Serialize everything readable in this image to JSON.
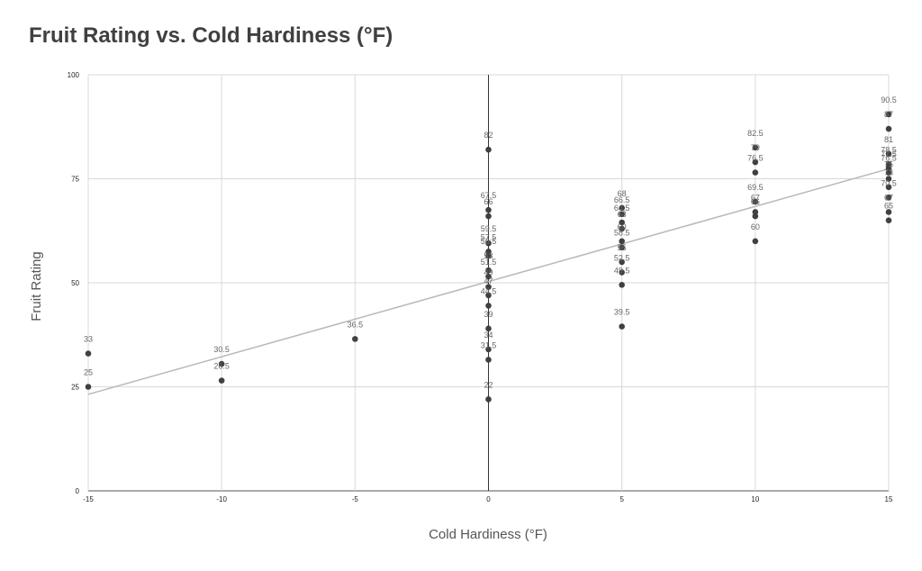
{
  "chart_data": {
    "type": "scatter",
    "title": "Fruit Rating vs. Cold Hardiness (°F)",
    "xlabel": "Cold Hardiness (°F)",
    "ylabel": "Fruit Rating",
    "xlim": [
      -15,
      15
    ],
    "ylim": [
      0,
      100
    ],
    "xticks": [
      -15,
      -10,
      -5,
      0,
      5,
      10,
      15
    ],
    "yticks": [
      0,
      25,
      50,
      75,
      100
    ],
    "grid": true,
    "legend": "none",
    "colors": {
      "points": "#404040",
      "trendline": "#b8b8b8",
      "grid": "#d9d9d9",
      "zero_line": "#333333"
    },
    "trendline": {
      "type": "linear",
      "from": [
        -15,
        23.2
      ],
      "to": [
        15,
        77.4
      ]
    },
    "points": [
      {
        "x": -15,
        "y": 33
      },
      {
        "x": -15,
        "y": 25
      },
      {
        "x": -10,
        "y": 30.5
      },
      {
        "x": -10,
        "y": 26.5
      },
      {
        "x": -5,
        "y": 36.5
      },
      {
        "x": 0,
        "y": 82
      },
      {
        "x": 0,
        "y": 67.5
      },
      {
        "x": 0,
        "y": 66
      },
      {
        "x": 0,
        "y": 59.5
      },
      {
        "x": 0,
        "y": 57.5
      },
      {
        "x": 0,
        "y": 56.5
      },
      {
        "x": 0,
        "y": 53
      },
      {
        "x": 0,
        "y": 51.5
      },
      {
        "x": 0,
        "y": 49
      },
      {
        "x": 0,
        "y": 47
      },
      {
        "x": 0,
        "y": 44.5
      },
      {
        "x": 0,
        "y": 39
      },
      {
        "x": 0,
        "y": 34
      },
      {
        "x": 0,
        "y": 31.5
      },
      {
        "x": 0,
        "y": 22
      },
      {
        "x": 5,
        "y": 68
      },
      {
        "x": 5,
        "y": 66.5
      },
      {
        "x": 5,
        "y": 64.5
      },
      {
        "x": 5,
        "y": 63
      },
      {
        "x": 5,
        "y": 60
      },
      {
        "x": 5,
        "y": 58.5
      },
      {
        "x": 5,
        "y": 55
      },
      {
        "x": 5,
        "y": 52.5
      },
      {
        "x": 5,
        "y": 49.5
      },
      {
        "x": 5,
        "y": 39.5
      },
      {
        "x": 10,
        "y": 82.5
      },
      {
        "x": 10,
        "y": 79
      },
      {
        "x": 10,
        "y": 76.5
      },
      {
        "x": 10,
        "y": 69.5
      },
      {
        "x": 10,
        "y": 67
      },
      {
        "x": 10,
        "y": 66
      },
      {
        "x": 10,
        "y": 60
      },
      {
        "x": 15,
        "y": 90.5
      },
      {
        "x": 15,
        "y": 87
      },
      {
        "x": 15,
        "y": 81
      },
      {
        "x": 15,
        "y": 78.5
      },
      {
        "x": 15,
        "y": 77.5
      },
      {
        "x": 15,
        "y": 76.5
      },
      {
        "x": 15,
        "y": 75
      },
      {
        "x": 15,
        "y": 73
      },
      {
        "x": 15,
        "y": 70.5
      },
      {
        "x": 15,
        "y": 67
      },
      {
        "x": 15,
        "y": 65
      }
    ]
  }
}
